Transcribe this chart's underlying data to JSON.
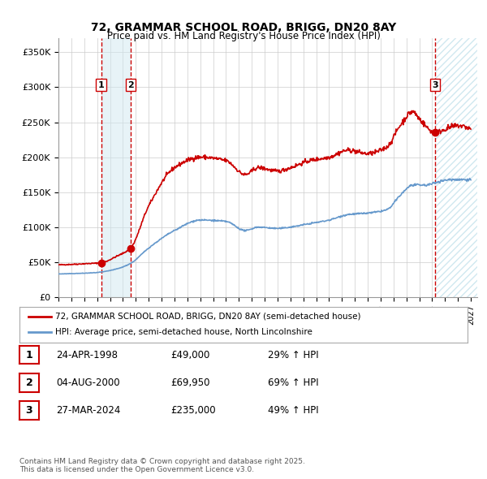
{
  "title_line1": "72, GRAMMAR SCHOOL ROAD, BRIGG, DN20 8AY",
  "title_line2": "Price paid vs. HM Land Registry's House Price Index (HPI)",
  "ylabel": "",
  "xlim_start": 1995.0,
  "xlim_end": 2027.5,
  "ylim_min": 0,
  "ylim_max": 370000,
  "yticks": [
    0,
    50000,
    100000,
    150000,
    200000,
    250000,
    300000,
    350000
  ],
  "ytick_labels": [
    "£0",
    "£50K",
    "£100K",
    "£150K",
    "£200K",
    "£250K",
    "£300K",
    "£350K"
  ],
  "sale_dates": [
    1998.31,
    2000.59,
    2024.24
  ],
  "sale_prices": [
    49000,
    69950,
    235000
  ],
  "sale_labels": [
    "1",
    "2",
    "3"
  ],
  "vline1_x": 1998.31,
  "vline2_x": 2000.59,
  "vline3_x": 2024.24,
  "shade1_x1": 1998.31,
  "shade1_x2": 2000.59,
  "shade2_x1": 2024.24,
  "shade2_x2": 2027.5,
  "red_line_color": "#cc0000",
  "blue_line_color": "#6699cc",
  "sale_marker_color": "#cc0000",
  "vline_color": "#cc0000",
  "shade_color": "#d0e8f0",
  "hatch_color": "#d0e8f0",
  "grid_color": "#cccccc",
  "background_color": "#ffffff",
  "legend_line1": "72, GRAMMAR SCHOOL ROAD, BRIGG, DN20 8AY (semi-detached house)",
  "legend_line2": "HPI: Average price, semi-detached house, North Lincolnshire",
  "table_data": [
    [
      "1",
      "24-APR-1998",
      "£49,000",
      "29% ↑ HPI"
    ],
    [
      "2",
      "04-AUG-2000",
      "£69,950",
      "69% ↑ HPI"
    ],
    [
      "3",
      "27-MAR-2024",
      "£235,000",
      "49% ↑ HPI"
    ]
  ],
  "footnote": "Contains HM Land Registry data © Crown copyright and database right 2025.\nThis data is licensed under the Open Government Licence v3.0."
}
